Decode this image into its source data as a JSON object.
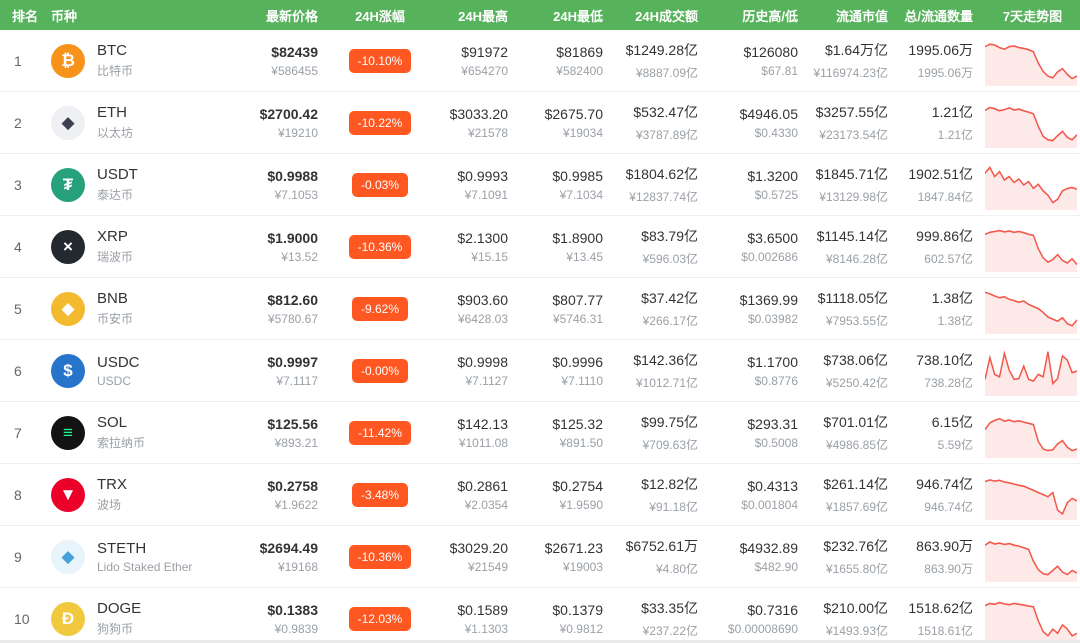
{
  "header": {
    "rank": "排名",
    "coin": "币种",
    "price": "最新价格",
    "change": "24H涨幅",
    "high": "24H最高",
    "low": "24H最低",
    "volume": "24H成交额",
    "history": "历史高/低",
    "mcap": "流通市值",
    "supply": "总/流通数量",
    "chart": "7天走势图"
  },
  "colors": {
    "header_bg": "#57B25C",
    "badge_bg": "#FF5722",
    "spark_line": "#F2574A",
    "spark_fill": "#FCE9E8"
  },
  "coins": [
    {
      "rank": "1",
      "symbol": "BTC",
      "name": "比特币",
      "icon": {
        "glyph": "₿",
        "bg": "#F7931A",
        "fg": "#ffffff"
      },
      "price_usd": "$82439",
      "price_cny": "¥586455",
      "change_24h": "-10.10%",
      "high_usd": "$91972",
      "high_cny": "¥654270",
      "low_usd": "$81869",
      "low_cny": "¥582400",
      "volume_usd": "$1249.28亿",
      "volume_cny": "¥8887.09亿",
      "ath": "$126080",
      "atl": "$67.81",
      "mcap_usd": "$1.64万亿",
      "mcap_cny": "¥116974.23亿",
      "supply_total": "1995.06万",
      "supply_circ": "1995.06万",
      "spark": [
        84,
        90,
        88,
        82,
        78,
        84,
        86,
        82,
        80,
        77,
        72,
        45,
        25,
        14,
        10,
        24,
        32,
        18,
        8,
        14
      ]
    },
    {
      "rank": "2",
      "symbol": "ETH",
      "name": "以太坊",
      "icon": {
        "glyph": "◆",
        "bg": "#EEF0F4",
        "fg": "#3E3E50"
      },
      "price_usd": "$2700.42",
      "price_cny": "¥19210",
      "change_24h": "-10.22%",
      "high_usd": "$3033.20",
      "high_cny": "¥21578",
      "low_usd": "$2675.70",
      "low_cny": "¥19034",
      "volume_usd": "$532.47亿",
      "volume_cny": "¥3787.89亿",
      "ath": "$4946.05",
      "atl": "$0.4330",
      "mcap_usd": "$3257.55亿",
      "mcap_cny": "¥23173.54亿",
      "supply_total": "1.21亿",
      "supply_circ": "1.21亿",
      "spark": [
        80,
        87,
        84,
        79,
        82,
        86,
        81,
        83,
        79,
        76,
        72,
        42,
        18,
        10,
        8,
        20,
        30,
        16,
        10,
        22
      ]
    },
    {
      "rank": "3",
      "symbol": "USDT",
      "name": "泰达币",
      "icon": {
        "glyph": "₮",
        "bg": "#26A17B",
        "fg": "#ffffff"
      },
      "price_usd": "$0.9988",
      "price_cny": "¥7.1053",
      "change_24h": "-0.03%",
      "high_usd": "$0.9993",
      "high_cny": "¥7.1091",
      "low_usd": "$0.9985",
      "low_cny": "¥7.1034",
      "volume_usd": "$1804.62亿",
      "volume_cny": "¥12837.74亿",
      "ath": "$1.3200",
      "atl": "$0.5725",
      "mcap_usd": "$1845.71亿",
      "mcap_cny": "¥13129.98亿",
      "supply_total": "1902.51亿",
      "supply_circ": "1847.84亿",
      "spark": [
        78,
        92,
        70,
        82,
        62,
        70,
        56,
        64,
        50,
        58,
        42,
        52,
        36,
        26,
        8,
        16,
        36,
        42,
        44,
        40
      ]
    },
    {
      "rank": "4",
      "symbol": "XRP",
      "name": "瑞波币",
      "icon": {
        "glyph": "×",
        "bg": "#23292F",
        "fg": "#ffffff"
      },
      "price_usd": "$1.9000",
      "price_cny": "¥13.52",
      "change_24h": "-10.36%",
      "high_usd": "$2.1300",
      "high_cny": "¥15.15",
      "low_usd": "$1.8900",
      "low_cny": "¥13.45",
      "volume_usd": "$83.79亿",
      "volume_cny": "¥596.03亿",
      "ath": "$3.6500",
      "atl": "$0.002686",
      "mcap_usd": "$1145.14亿",
      "mcap_cny": "¥8146.28亿",
      "supply_total": "999.86亿",
      "supply_circ": "602.57亿",
      "spark": [
        80,
        85,
        87,
        89,
        86,
        88,
        85,
        87,
        84,
        80,
        78,
        46,
        24,
        14,
        20,
        32,
        18,
        12,
        22,
        8
      ]
    },
    {
      "rank": "5",
      "symbol": "BNB",
      "name": "币安币",
      "icon": {
        "glyph": "◆",
        "bg": "#F3BA2F",
        "fg": "#ffffff"
      },
      "price_usd": "$812.60",
      "price_cny": "¥5780.67",
      "change_24h": "-9.62%",
      "high_usd": "$903.60",
      "high_cny": "¥6428.03",
      "low_usd": "$807.77",
      "low_cny": "¥5746.31",
      "volume_usd": "$37.42亿",
      "volume_cny": "¥266.17亿",
      "ath": "$1369.99",
      "atl": "$0.03982",
      "mcap_usd": "$1118.05亿",
      "mcap_cny": "¥7953.55亿",
      "supply_total": "1.38亿",
      "supply_circ": "1.38亿",
      "spark": [
        90,
        86,
        81,
        77,
        79,
        73,
        70,
        66,
        69,
        61,
        56,
        51,
        42,
        31,
        26,
        21,
        29,
        15,
        10,
        24
      ]
    },
    {
      "rank": "6",
      "symbol": "USDC",
      "name": "USDC",
      "icon": {
        "glyph": "$",
        "bg": "#2775CA",
        "fg": "#ffffff"
      },
      "price_usd": "$0.9997",
      "price_cny": "¥7.1117",
      "change_24h": "-0.00%",
      "high_usd": "$0.9998",
      "high_cny": "¥7.1127",
      "low_usd": "$0.9996",
      "low_cny": "¥7.1110",
      "volume_usd": "$142.36亿",
      "volume_cny": "¥1012.71亿",
      "ath": "$1.1700",
      "atl": "$0.8776",
      "mcap_usd": "$738.06亿",
      "mcap_cny": "¥5250.42亿",
      "supply_total": "738.10亿",
      "supply_circ": "738.28亿",
      "spark": [
        30,
        82,
        42,
        36,
        92,
        52,
        30,
        32,
        62,
        30,
        26,
        42,
        36,
        96,
        20,
        32,
        86,
        76,
        46,
        50
      ]
    },
    {
      "rank": "7",
      "symbol": "SOL",
      "name": "索拉纳币",
      "icon": {
        "glyph": "≡",
        "bg": "#131313",
        "fg": "#19FB9B"
      },
      "price_usd": "$125.56",
      "price_cny": "¥893.21",
      "change_24h": "-11.42%",
      "high_usd": "$142.13",
      "high_cny": "¥1011.08",
      "low_usd": "$125.32",
      "low_cny": "¥891.50",
      "volume_usd": "$99.75亿",
      "volume_cny": "¥709.63亿",
      "ath": "$293.31",
      "atl": "$0.5008",
      "mcap_usd": "$701.01亿",
      "mcap_cny": "¥4986.85亿",
      "supply_total": "6.15亿",
      "supply_circ": "5.59亿",
      "spark": [
        58,
        74,
        80,
        84,
        78,
        81,
        77,
        79,
        76,
        73,
        70,
        30,
        12,
        8,
        10,
        24,
        32,
        16,
        8,
        12
      ]
    },
    {
      "rank": "8",
      "symbol": "TRX",
      "name": "波场",
      "icon": {
        "glyph": "▼",
        "bg": "#EB0029",
        "fg": "#ffffff"
      },
      "price_usd": "$0.2758",
      "price_cny": "¥1.9622",
      "change_24h": "-3.48%",
      "high_usd": "$0.2861",
      "high_cny": "¥2.0354",
      "low_usd": "$0.2754",
      "low_cny": "¥1.9590",
      "volume_usd": "$12.82亿",
      "volume_cny": "¥91.18亿",
      "ath": "$0.4313",
      "atl": "$0.001804",
      "mcap_usd": "$261.14亿",
      "mcap_cny": "¥1857.69亿",
      "supply_total": "946.74亿",
      "supply_circ": "946.74亿",
      "spark": [
        82,
        86,
        83,
        85,
        81,
        79,
        76,
        73,
        71,
        66,
        61,
        56,
        51,
        46,
        56,
        14,
        5,
        32,
        42,
        36
      ]
    },
    {
      "rank": "9",
      "symbol": "STETH",
      "name": "Lido Staked Ether",
      "icon": {
        "glyph": "◆",
        "bg": "#E8F4FB",
        "fg": "#49A1DB"
      },
      "price_usd": "$2694.49",
      "price_cny": "¥19168",
      "change_24h": "-10.36%",
      "high_usd": "$3029.20",
      "high_cny": "¥21549",
      "low_usd": "$2671.23",
      "low_cny": "¥19003",
      "volume_usd": "$6752.61万",
      "volume_cny": "¥4.80亿",
      "ath": "$4932.89",
      "atl": "$482.90",
      "mcap_usd": "$232.76亿",
      "mcap_cny": "¥1655.80亿",
      "supply_total": "863.90万",
      "supply_circ": "863.90万",
      "spark": [
        78,
        86,
        81,
        83,
        80,
        82,
        78,
        76,
        72,
        68,
        40,
        20,
        10,
        8,
        18,
        28,
        14,
        8,
        18,
        12
      ]
    },
    {
      "rank": "10",
      "symbol": "DOGE",
      "name": "狗狗币",
      "icon": {
        "glyph": "Ð",
        "bg": "#F0C93F",
        "fg": "#ffffff"
      },
      "price_usd": "$0.1383",
      "price_cny": "¥0.9839",
      "change_24h": "-12.03%",
      "high_usd": "$0.1589",
      "high_cny": "¥1.1303",
      "low_usd": "$0.1379",
      "low_cny": "¥0.9812",
      "volume_usd": "$33.35亿",
      "volume_cny": "¥237.22亿",
      "ath": "$0.7316",
      "atl": "$0.00008690",
      "mcap_usd": "$210.00亿",
      "mcap_cny": "¥1493.93亿",
      "supply_total": "1518.62亿",
      "supply_circ": "1518.61亿",
      "spark": [
        82,
        87,
        85,
        89,
        86,
        84,
        87,
        85,
        83,
        81,
        79,
        46,
        20,
        10,
        26,
        16,
        36,
        26,
        10,
        16
      ]
    }
  ]
}
